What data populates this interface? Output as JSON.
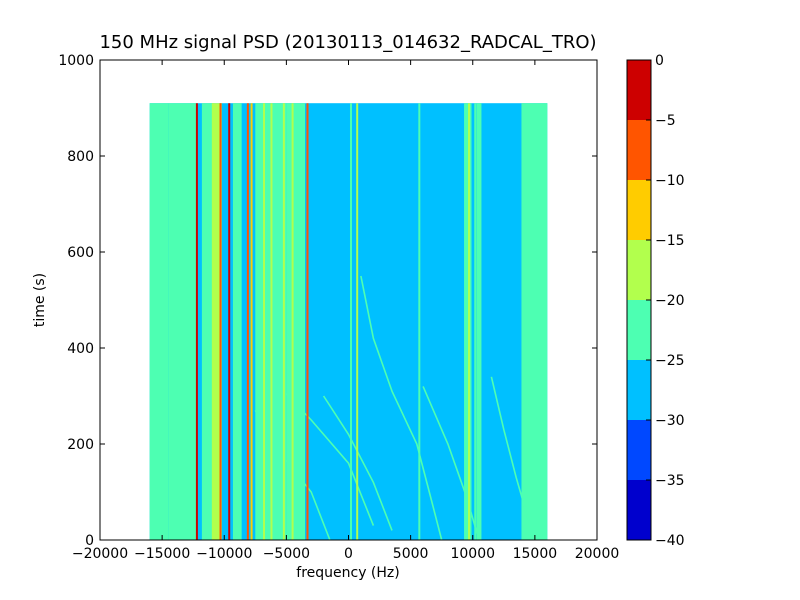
{
  "chart_data": {
    "type": "heatmap",
    "title": "150 MHz signal PSD (20130113_014632_RADCAL_TRO)",
    "xlabel": "frequency (Hz)",
    "ylabel": "time (s)",
    "xlim": [
      -20000,
      20000
    ],
    "ylim": [
      0,
      1000
    ],
    "x_ticks": [
      -20000,
      -15000,
      -10000,
      -5000,
      0,
      5000,
      10000,
      15000,
      20000
    ],
    "x_tick_labels": [
      "−20000",
      "−15000",
      "−10000",
      "−5000",
      "0",
      "5000",
      "10000",
      "15000",
      "20000"
    ],
    "y_ticks": [
      0,
      200,
      400,
      600,
      800,
      1000
    ],
    "y_tick_labels": [
      "0",
      "200",
      "400",
      "600",
      "800",
      "1000"
    ],
    "data_extent": {
      "x": [
        -16000,
        16000
      ],
      "y": [
        0,
        910
      ]
    },
    "background_level": -27.5,
    "colorbar": {
      "levels": [
        -40,
        -35,
        -30,
        -25,
        -20,
        -15,
        -10,
        -5,
        0
      ],
      "tick_labels": [
        "−40",
        "−35",
        "−30",
        "−25",
        "−20",
        "−15",
        "−10",
        "−5",
        "0"
      ],
      "colors": [
        "#0000cd",
        "#0048ff",
        "#00c0ff",
        "#4dffb2",
        "#b2ff4d",
        "#ffcc00",
        "#ff5500",
        "#cd0000"
      ]
    },
    "bands": [
      {
        "x": [
          -16000,
          -14500
        ],
        "level": -22.5
      },
      {
        "x": [
          -14500,
          -12200
        ],
        "level": -22.5
      },
      {
        "x": [
          -11800,
          -10800
        ],
        "level": -22.5
      },
      {
        "x": [
          -11000,
          -10200
        ],
        "level": -17.5
      },
      {
        "x": [
          -9300,
          -8600
        ],
        "level": -22.5
      },
      {
        "x": [
          -7500,
          -5000
        ],
        "level": -22.5
      },
      {
        "x": [
          -5000,
          -3500
        ],
        "level": -22.5
      },
      {
        "x": [
          14000,
          16000
        ],
        "level": -22.5
      },
      {
        "x": [
          9300,
          9900
        ],
        "level": -22.5
      },
      {
        "x": [
          10300,
          10700
        ],
        "level": -22.5
      }
    ],
    "lines": [
      {
        "x": -12200,
        "level": -2.5
      },
      {
        "x": -10300,
        "level": -7.5
      },
      {
        "x": -9600,
        "level": -2.5
      },
      {
        "x": -8100,
        "level": -7.5
      },
      {
        "x": -7800,
        "level": -12.5
      },
      {
        "x": -6800,
        "level": -17.5
      },
      {
        "x": -6200,
        "level": -17.5
      },
      {
        "x": -5200,
        "level": -17.5
      },
      {
        "x": -4500,
        "level": -17.5
      },
      {
        "x": -3300,
        "level": -7.5
      },
      {
        "x": 200,
        "level": -22.5
      },
      {
        "x": 700,
        "level": -17.5
      },
      {
        "x": 5700,
        "level": -22.5
      },
      {
        "x": 9700,
        "level": -17.5
      },
      {
        "x": 10200,
        "level": -22.5
      },
      {
        "x": 14000,
        "level": -22.5
      }
    ],
    "tracks": [
      {
        "points": [
          [
            -7500,
            270
          ],
          [
            -5500,
            180
          ],
          [
            -3000,
            100
          ],
          [
            -1500,
            0
          ]
        ],
        "level": -22.5
      },
      {
        "points": [
          [
            -6000,
            330
          ],
          [
            -3000,
            250
          ],
          [
            0,
            160
          ],
          [
            2000,
            30
          ]
        ],
        "level": -22.5
      },
      {
        "points": [
          [
            1000,
            550
          ],
          [
            2000,
            420
          ],
          [
            3500,
            310
          ],
          [
            5500,
            200
          ],
          [
            6500,
            100
          ],
          [
            7500,
            0
          ]
        ],
        "level": -22.5
      },
      {
        "points": [
          [
            6000,
            320
          ],
          [
            8000,
            200
          ],
          [
            9500,
            90
          ],
          [
            10500,
            0
          ]
        ],
        "level": -22.5
      },
      {
        "points": [
          [
            11500,
            340
          ],
          [
            12500,
            230
          ],
          [
            13500,
            130
          ],
          [
            14500,
            40
          ]
        ],
        "level": -22.5
      },
      {
        "points": [
          [
            -2000,
            300
          ],
          [
            0,
            220
          ],
          [
            2000,
            120
          ],
          [
            3500,
            20
          ]
        ],
        "level": -22.5
      }
    ]
  }
}
